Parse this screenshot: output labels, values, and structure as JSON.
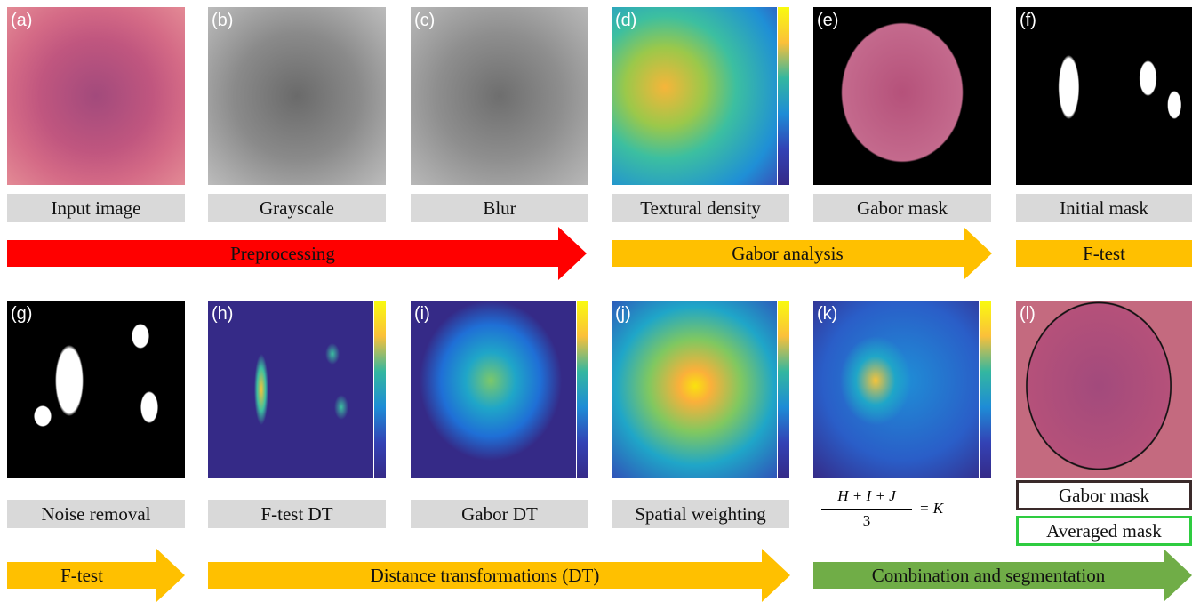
{
  "panels": [
    {
      "label": "(a)",
      "caption": "Input image"
    },
    {
      "label": "(b)",
      "caption": "Grayscale"
    },
    {
      "label": "(c)",
      "caption": "Blur"
    },
    {
      "label": "(d)",
      "caption": "Textural density"
    },
    {
      "label": "(e)",
      "caption": "Gabor mask"
    },
    {
      "label": "(f)",
      "caption": "Initial mask"
    },
    {
      "label": "(g)",
      "caption": "Noise removal"
    },
    {
      "label": "(h)",
      "caption": "F-test DT"
    },
    {
      "label": "(i)",
      "caption": "Gabor DT"
    },
    {
      "label": "(j)",
      "caption": "Spatial weighting"
    },
    {
      "label": "(k)"
    },
    {
      "label": "(l)"
    }
  ],
  "formula": {
    "numerator": "H + I + J",
    "denominator": "3",
    "result": "= K"
  },
  "legend": [
    "Gabor mask",
    "Averaged mask"
  ],
  "arrows": [
    "Preprocessing",
    "Gabor analysis",
    "F-test",
    "F-test",
    "Distance transformations (DT)",
    "Combination and segmentation"
  ]
}
